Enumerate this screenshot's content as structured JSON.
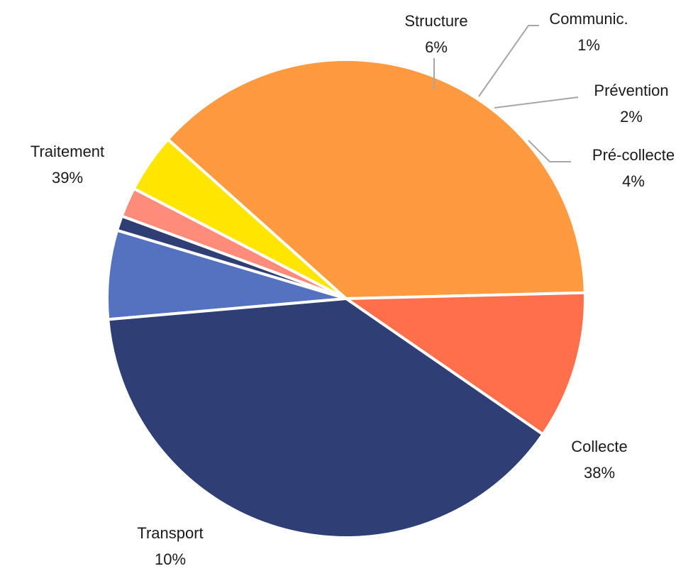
{
  "chart_data": {
    "type": "pie",
    "title": "",
    "slices": [
      {
        "label": "Structure",
        "pct_label": "6%",
        "value": 6,
        "color": "#5472c0"
      },
      {
        "label": "Communic.",
        "pct_label": "1%",
        "value": 1,
        "color": "#2f3e74"
      },
      {
        "label": "Prévention",
        "pct_label": "2%",
        "value": 2,
        "color": "#ff8c7a"
      },
      {
        "label": "Pré-collecte",
        "pct_label": "4%",
        "value": 4,
        "color": "#ffe600"
      },
      {
        "label": "Collecte",
        "pct_label": "38%",
        "value": 38,
        "color": "#ff9a40"
      },
      {
        "label": "Transport",
        "pct_label": "10%",
        "value": 10,
        "color": "#ff6f4c"
      },
      {
        "label": "Traitement",
        "pct_label": "39%",
        "value": 39,
        "color": "#2f3e74"
      }
    ]
  }
}
